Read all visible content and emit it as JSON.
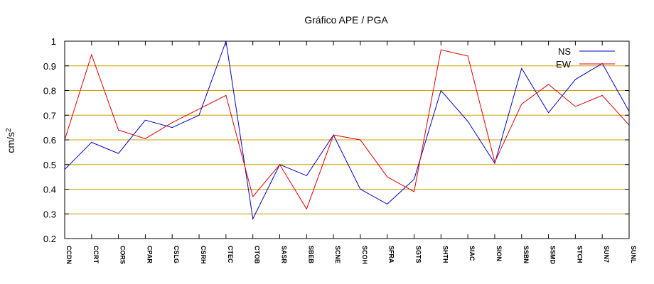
{
  "chart_data": {
    "type": "line",
    "title": "Gráfico  APE / PGA",
    "xlabel": "",
    "ylabel": "cm/s",
    "ylabel_superscript": "2",
    "ylim": [
      0.2,
      1.0
    ],
    "yticks": [
      0.2,
      0.3,
      0.4,
      0.5,
      0.6,
      0.7,
      0.8,
      0.9,
      1.0
    ],
    "ytick_labels": [
      "0.2",
      "0.3",
      "0.4",
      "0.5",
      "0.6",
      "0.7",
      "0.8",
      "0.9",
      "1"
    ],
    "grid": "horizontal",
    "grid_color": "#c8a000",
    "legend": "top-right",
    "categories": [
      "CCDN",
      "CCRT",
      "CORS",
      "CPAR",
      "CSLG",
      "CSRH",
      "CTEC",
      "CTOB",
      "SASR",
      "SBEB",
      "SCNE",
      "SCOH",
      "SFRA",
      "SGTS",
      "SHTH",
      "SIAC",
      "SION",
      "SSBN",
      "SSMD",
      "STCH",
      "SUN7",
      "SUNL"
    ],
    "series": [
      {
        "name": "NS",
        "color": "#0000cc",
        "values": [
          0.48,
          0.59,
          0.545,
          0.68,
          0.65,
          0.7,
          1.0,
          0.28,
          0.5,
          0.455,
          0.62,
          0.4,
          0.34,
          0.44,
          0.8,
          0.675,
          0.505,
          0.89,
          0.71,
          0.845,
          0.91,
          0.715
        ]
      },
      {
        "name": "EW",
        "color": "#e00000",
        "values": [
          0.6,
          0.945,
          0.64,
          0.605,
          0.67,
          0.725,
          0.78,
          0.37,
          0.5,
          0.32,
          0.62,
          0.6,
          0.45,
          0.39,
          0.965,
          0.94,
          0.51,
          0.745,
          0.825,
          0.735,
          0.78,
          0.66
        ]
      }
    ]
  }
}
